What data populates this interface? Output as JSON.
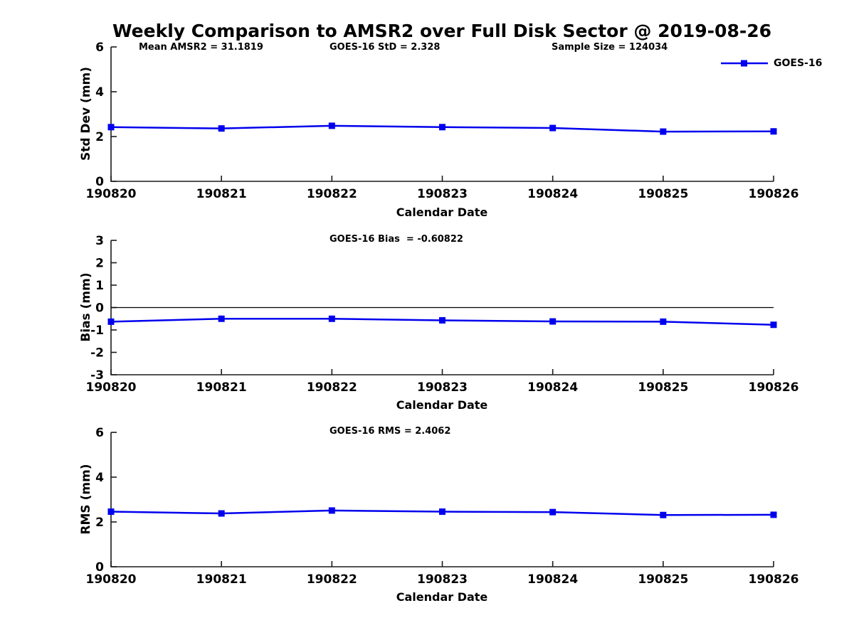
{
  "title": "Weekly Comparison to AMSR2 over Full Disk Sector @ 2019-08-26",
  "legend": {
    "label": "GOES-16",
    "color": "#0000ee"
  },
  "axis_color": "#1a1a1a",
  "chart_data": [
    {
      "type": "line",
      "categories": [
        "190820",
        "190821",
        "190822",
        "190823",
        "190824",
        "190825",
        "190826"
      ],
      "series": [
        {
          "name": "GOES-16",
          "values": [
            2.42,
            2.36,
            2.48,
            2.42,
            2.38,
            2.22,
            2.23
          ]
        }
      ],
      "annotations": [
        "Mean AMSR2 = 31.1819",
        "GOES-16 StD = 2.328",
        "Sample Size = 124034"
      ],
      "xlabel": "Calendar Date",
      "ylabel": "Std Dev (mm)",
      "ylim": [
        0,
        6
      ],
      "yticks": [
        0,
        2,
        4,
        6
      ],
      "grid": false,
      "zero_line": false,
      "legend_position": "top-right-outside"
    },
    {
      "type": "line",
      "categories": [
        "190820",
        "190821",
        "190822",
        "190823",
        "190824",
        "190825",
        "190826"
      ],
      "series": [
        {
          "name": "GOES-16",
          "values": [
            -0.63,
            -0.5,
            -0.5,
            -0.57,
            -0.62,
            -0.63,
            -0.77
          ]
        }
      ],
      "annotations": [
        "GOES-16 Bias  = -0.60822"
      ],
      "xlabel": "Calendar Date",
      "ylabel": "Bias (mm)",
      "ylim": [
        -3,
        3
      ],
      "yticks": [
        -3,
        -2,
        -1,
        0,
        1,
        2,
        3
      ],
      "grid": false,
      "zero_line": true
    },
    {
      "type": "line",
      "categories": [
        "190820",
        "190821",
        "190822",
        "190823",
        "190824",
        "190825",
        "190826"
      ],
      "series": [
        {
          "name": "GOES-16",
          "values": [
            2.46,
            2.38,
            2.51,
            2.46,
            2.44,
            2.31,
            2.32
          ]
        }
      ],
      "annotations": [
        "GOES-16 RMS = 2.4062"
      ],
      "xlabel": "Calendar Date",
      "ylabel": "RMS (mm)",
      "ylim": [
        0,
        6
      ],
      "yticks": [
        0,
        2,
        4,
        6
      ],
      "grid": false,
      "zero_line": false
    }
  ]
}
